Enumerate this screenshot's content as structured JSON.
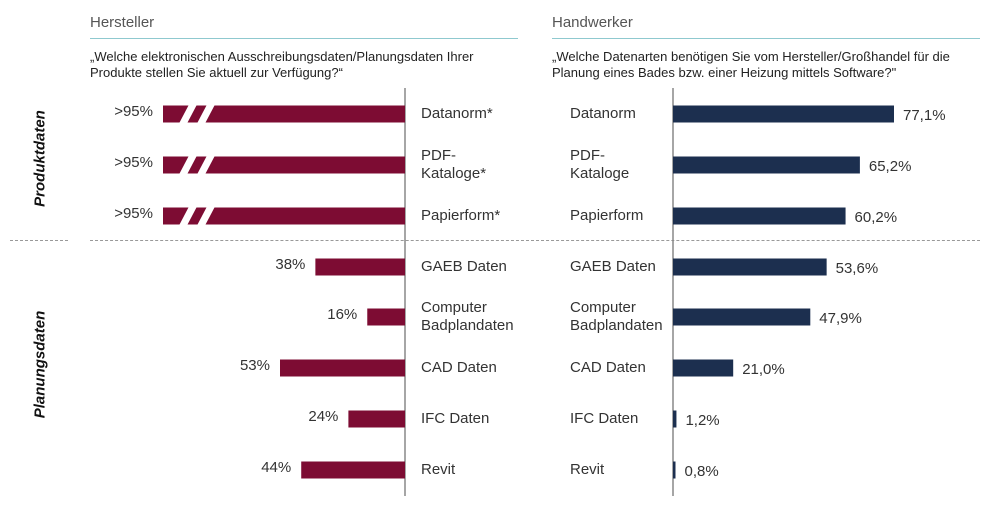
{
  "left_panel": {
    "header": "Hersteller",
    "question": "„Welche elektronischen Ausschreibungsdaten/Planungsdaten Ihrer Produkte stellen Sie aktuell zur Verfügung?“"
  },
  "right_panel": {
    "header": "Handwerker",
    "question": "„Welche Datenarten benötigen Sie vom Hersteller/Großhandel für die Planung eines Bades bzw. einer Heizung mittels Software?\""
  },
  "side_labels": {
    "top": "Produktdaten",
    "bottom": "Planungsdaten"
  },
  "colors": {
    "hersteller": "#7d0c33",
    "handwerker": "#1c2f4f",
    "axis": "#888888",
    "divider": "#999999"
  },
  "chart_data": [
    {
      "type": "bar",
      "orientation": "horizontal-left",
      "title": "Hersteller",
      "categories": [
        "Datanorm*",
        "PDF-\nKataloge*",
        "Papierform*",
        "GAEB Daten",
        "Computer\nBadplandaten",
        "CAD Daten",
        "IFC Daten",
        "Revit"
      ],
      "values": [
        95,
        95,
        95,
        38,
        16,
        53,
        24,
        44
      ],
      "value_labels": [
        ">95%",
        ">95%",
        ">95%",
        "38%",
        "16%",
        "53%",
        "24%",
        "44%"
      ],
      "broken_axis": [
        true,
        true,
        true,
        false,
        false,
        false,
        false,
        false
      ],
      "xlim": [
        0,
        100
      ],
      "groups": [
        {
          "name": "Produktdaten",
          "count": 3
        },
        {
          "name": "Planungsdaten",
          "count": 5
        }
      ]
    },
    {
      "type": "bar",
      "orientation": "horizontal-right",
      "title": "Handwerker",
      "categories": [
        "Datanorm",
        "PDF-\nKataloge",
        "Papierform",
        "GAEB Daten",
        "Computer\nBadplandaten",
        "CAD Daten",
        "IFC Daten",
        "Revit"
      ],
      "values": [
        77.1,
        65.2,
        60.2,
        53.6,
        47.9,
        21.0,
        1.2,
        0.8
      ],
      "value_labels": [
        "77,1%",
        "65,2%",
        "60,2%",
        "53,6%",
        "47,9%",
        "21,0%",
        "1,2%",
        "0,8%"
      ],
      "xlim": [
        0,
        100
      ],
      "groups": [
        {
          "name": "Produktdaten",
          "count": 3
        },
        {
          "name": "Planungsdaten",
          "count": 5
        }
      ]
    }
  ]
}
